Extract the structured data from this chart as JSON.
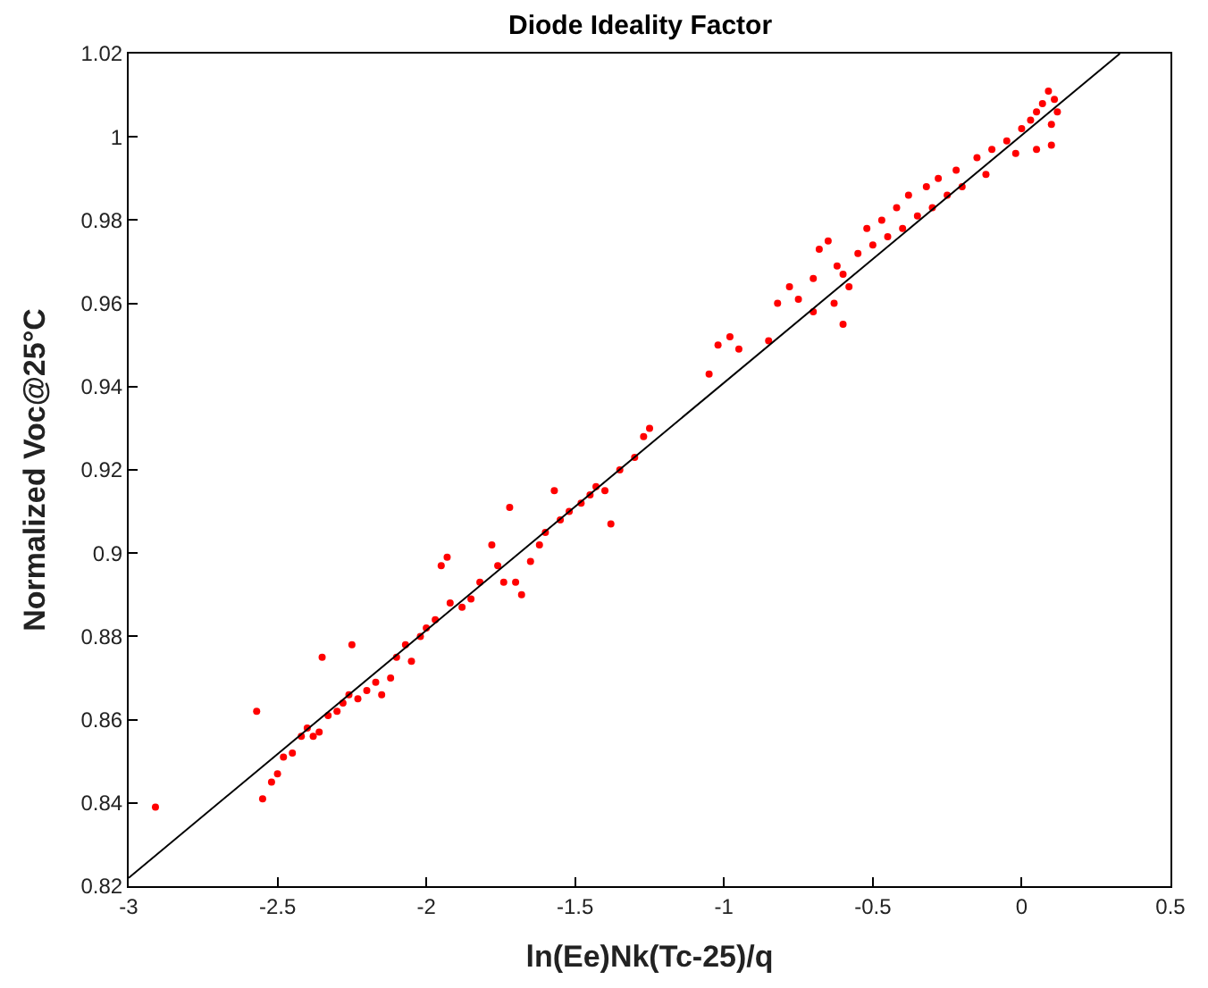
{
  "chart_data": {
    "type": "scatter",
    "title": "Diode Ideality Factor",
    "xlabel": "ln(Ee)Nk(Tc-25)/q",
    "ylabel": "Normalized Voc@25°C",
    "xlim": [
      -3,
      0.5
    ],
    "xticks": [
      -3,
      -2.5,
      -2,
      -1.5,
      -1,
      -0.5,
      0,
      0.5
    ],
    "ylim": [
      0.82,
      1.02
    ],
    "yticks": [
      0.82,
      0.84,
      0.86,
      0.88,
      0.9,
      0.92,
      0.94,
      0.96,
      0.98,
      1,
      1.02
    ],
    "series": [
      {
        "marker": "circle",
        "color": "#ff0000",
        "x": [
          -2.91,
          -2.57,
          -2.55,
          -2.52,
          -2.5,
          -2.48,
          -2.45,
          -2.42,
          -2.4,
          -2.38,
          -2.36,
          -2.35,
          -2.33,
          -2.3,
          -2.28,
          -2.26,
          -2.25,
          -2.23,
          -2.2,
          -2.17,
          -2.15,
          -2.12,
          -2.1,
          -2.07,
          -2.05,
          -2.02,
          -2.0,
          -1.97,
          -1.95,
          -1.93,
          -1.92,
          -1.88,
          -1.85,
          -1.82,
          -1.78,
          -1.76,
          -1.74,
          -1.72,
          -1.7,
          -1.68,
          -1.65,
          -1.62,
          -1.6,
          -1.57,
          -1.55,
          -1.52,
          -1.48,
          -1.45,
          -1.43,
          -1.4,
          -1.38,
          -1.35,
          -1.3,
          -1.27,
          -1.25,
          -1.05,
          -1.02,
          -0.98,
          -0.95,
          -0.85,
          -0.82,
          -0.78,
          -0.75,
          -0.7,
          -0.68,
          -0.65,
          -0.62,
          -0.6,
          -0.58,
          -0.55,
          -0.52,
          -0.5,
          -0.47,
          -0.45,
          -0.42,
          -0.4,
          -0.38,
          -0.35,
          -0.32,
          -0.3,
          -0.28,
          -0.25,
          -0.22,
          -0.2,
          -0.15,
          -0.12,
          -0.1,
          -0.05,
          -0.02,
          0.0,
          0.03,
          0.05,
          0.07,
          0.09,
          0.1,
          0.11,
          0.12,
          0.1,
          0.05,
          -0.6,
          -0.63,
          -0.7
        ],
        "values": [
          0.839,
          0.862,
          0.841,
          0.845,
          0.847,
          0.851,
          0.852,
          0.856,
          0.858,
          0.856,
          0.857,
          0.875,
          0.861,
          0.862,
          0.864,
          0.866,
          0.878,
          0.865,
          0.867,
          0.869,
          0.866,
          0.87,
          0.875,
          0.878,
          0.874,
          0.88,
          0.882,
          0.884,
          0.897,
          0.899,
          0.888,
          0.887,
          0.889,
          0.893,
          0.902,
          0.897,
          0.893,
          0.911,
          0.893,
          0.89,
          0.898,
          0.902,
          0.905,
          0.915,
          0.908,
          0.91,
          0.912,
          0.914,
          0.916,
          0.915,
          0.907,
          0.92,
          0.923,
          0.928,
          0.93,
          0.943,
          0.95,
          0.952,
          0.949,
          0.951,
          0.96,
          0.964,
          0.961,
          0.966,
          0.973,
          0.975,
          0.969,
          0.967,
          0.964,
          0.972,
          0.978,
          0.974,
          0.98,
          0.976,
          0.983,
          0.978,
          0.986,
          0.981,
          0.988,
          0.983,
          0.99,
          0.986,
          0.992,
          0.988,
          0.995,
          0.991,
          0.997,
          0.999,
          0.996,
          1.002,
          1.004,
          1.006,
          1.008,
          1.011,
          1.003,
          1.009,
          1.006,
          0.998,
          0.997,
          0.955,
          0.96,
          0.958
        ]
      },
      {
        "type": "line",
        "marker": "none",
        "color": "#000000",
        "x": [
          -3,
          0.33
        ],
        "values": [
          0.822,
          1.02
        ]
      }
    ]
  }
}
